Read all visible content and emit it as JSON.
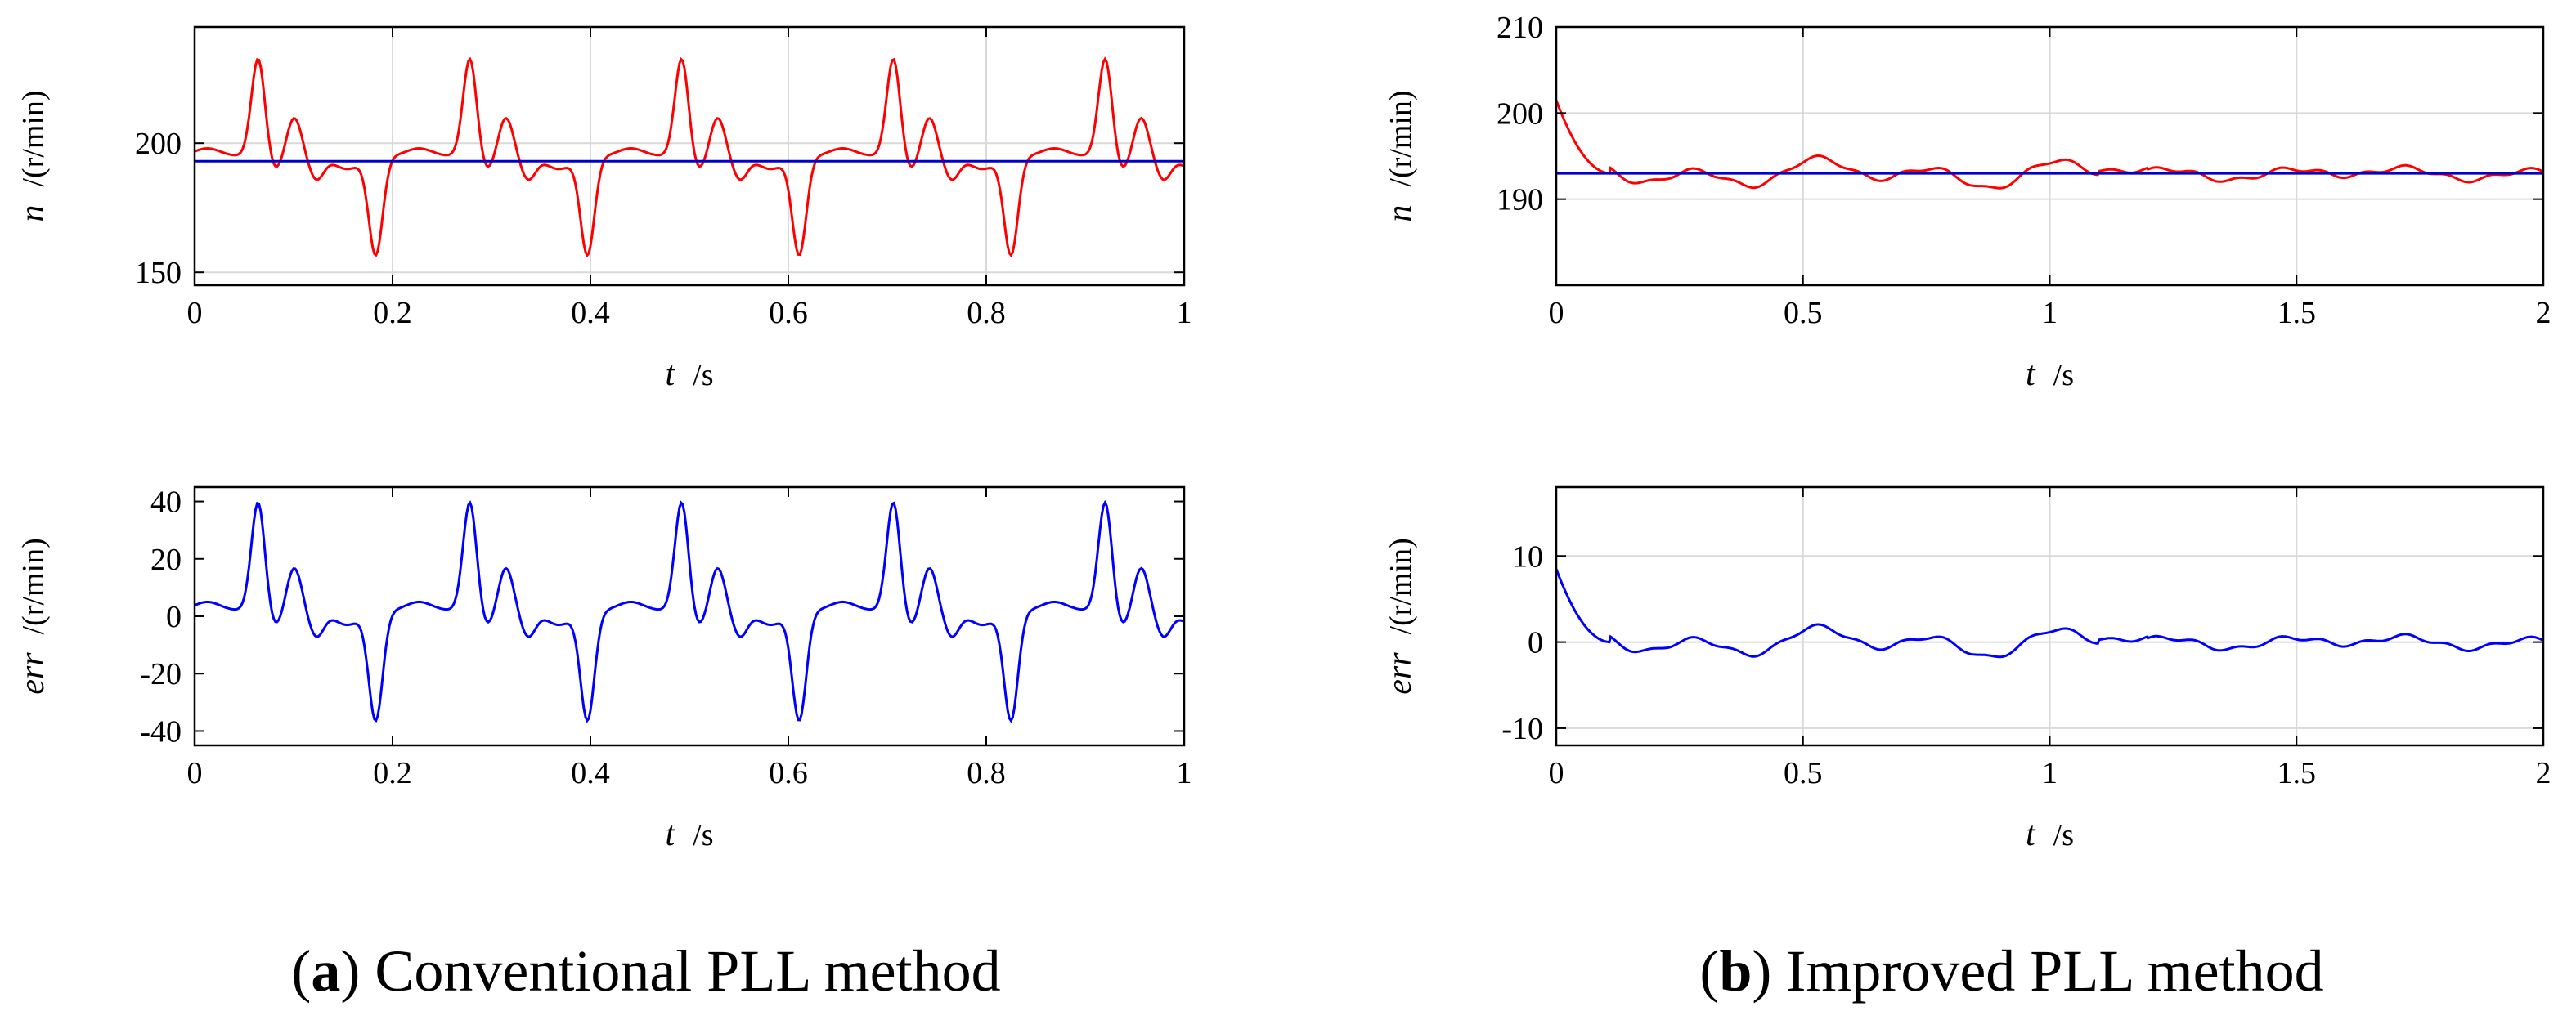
{
  "figure": {
    "caption_a": {
      "open": "(",
      "letter": "a",
      "close": ")",
      "text": " Conventional PLL method"
    },
    "caption_b": {
      "open": "(",
      "letter": "b",
      "close": ")",
      "text": " Improved PLL method"
    },
    "colors": {
      "measured": "#ff0000",
      "reference": "#0000cc",
      "error": "#0000ff",
      "grid": "#d9d9d9",
      "axes": "#000000"
    }
  },
  "chart_data": [
    {
      "id": "a-speed",
      "type": "line",
      "title": "",
      "xlabel": {
        "var": "t",
        "unit": "/s"
      },
      "ylabel": {
        "var": "n",
        "unit": "/(r/min)"
      },
      "xlim": [
        0,
        1
      ],
      "ylim": [
        145,
        245
      ],
      "xticks": [
        0,
        0.2,
        0.4,
        0.6,
        0.8,
        1
      ],
      "xtick_labels": [
        "0",
        "0.2",
        "0.4",
        "0.6",
        "0.8",
        "1"
      ],
      "yticks": [
        150,
        200
      ],
      "ytick_labels": [
        "150",
        "200"
      ],
      "grid": true,
      "series": [
        {
          "name": "speed",
          "color": "#ff0000",
          "kind": "conventional",
          "x_range": [
            0,
            1
          ],
          "base": 195,
          "period": 0.214,
          "points": 600
        },
        {
          "name": "reference",
          "color": "#0000cc",
          "kind": "flat",
          "x": [
            0,
            1
          ],
          "values": [
            193,
            193
          ]
        }
      ]
    },
    {
      "id": "a-error",
      "type": "line",
      "title": "",
      "xlabel": {
        "var": "t",
        "unit": "/s"
      },
      "ylabel": {
        "var": "err",
        "unit": "/(r/min)"
      },
      "xlim": [
        0,
        1
      ],
      "ylim": [
        -45,
        45
      ],
      "xticks": [
        0,
        0.2,
        0.4,
        0.6,
        0.8,
        1
      ],
      "xtick_labels": [
        "0",
        "0.2",
        "0.4",
        "0.6",
        "0.8",
        "1"
      ],
      "yticks": [
        -40,
        -20,
        0,
        20,
        40
      ],
      "ytick_labels": [
        "-40",
        "-20",
        "0",
        "20",
        "40"
      ],
      "grid": false,
      "series": [
        {
          "name": "error",
          "color": "#0000ff",
          "kind": "conventional",
          "x_range": [
            0,
            1
          ],
          "base": 2,
          "period": 0.214,
          "points": 600
        }
      ]
    },
    {
      "id": "b-speed",
      "type": "line",
      "title": "",
      "xlabel": {
        "var": "t",
        "unit": "/s"
      },
      "ylabel": {
        "var": "n",
        "unit": "/(r/min)"
      },
      "xlim": [
        0,
        2
      ],
      "ylim": [
        180,
        210
      ],
      "xticks": [
        0,
        0.5,
        1,
        1.5,
        2
      ],
      "xtick_labels": [
        "0",
        "0.5",
        "1",
        "1.5",
        "2"
      ],
      "yticks": [
        190,
        200,
        210
      ],
      "ytick_labels": [
        "190",
        "200",
        "210"
      ],
      "grid": true,
      "series": [
        {
          "name": "speed",
          "color": "#ff0000",
          "kind": "improved",
          "x_range": [
            0,
            2
          ],
          "base": 193,
          "start": 201.5,
          "points": 800
        },
        {
          "name": "reference",
          "color": "#0000cc",
          "kind": "flat",
          "x": [
            0,
            2
          ],
          "values": [
            193,
            193
          ]
        }
      ]
    },
    {
      "id": "b-error",
      "type": "line",
      "title": "",
      "xlabel": {
        "var": "t",
        "unit": "/s"
      },
      "ylabel": {
        "var": "err",
        "unit": "/(r/min)"
      },
      "xlim": [
        0,
        2
      ],
      "ylim": [
        -12,
        18
      ],
      "xticks": [
        0,
        0.5,
        1,
        1.5,
        2
      ],
      "xtick_labels": [
        "0",
        "0.5",
        "1",
        "1.5",
        "2"
      ],
      "yticks": [
        -10,
        0,
        10
      ],
      "ytick_labels": [
        "-10",
        "0",
        "10"
      ],
      "grid": true,
      "series": [
        {
          "name": "error",
          "color": "#0000ff",
          "kind": "improved",
          "x_range": [
            0,
            2
          ],
          "base": 0,
          "start": 8.5,
          "points": 800
        }
      ]
    }
  ]
}
